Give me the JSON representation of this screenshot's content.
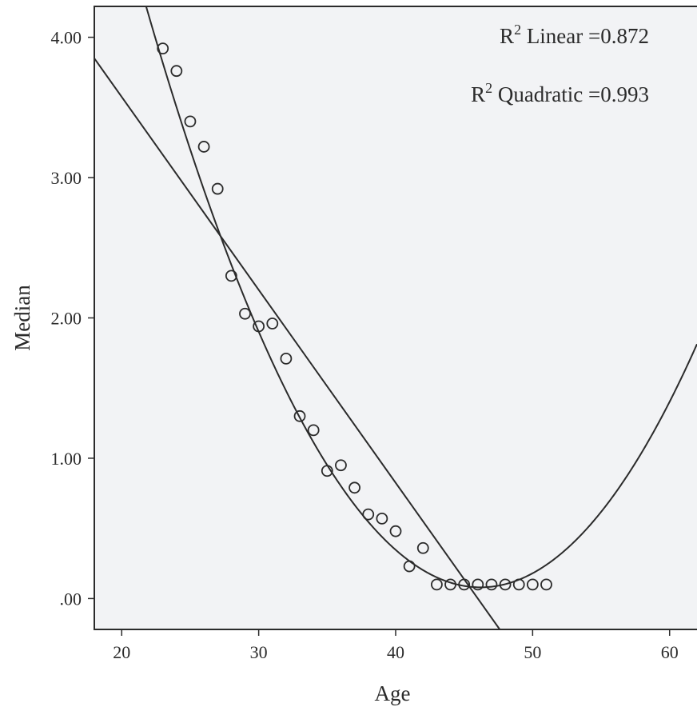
{
  "chart_data": {
    "type": "scatter",
    "xlabel": "Age",
    "ylabel": "Median",
    "xlim": [
      18,
      62
    ],
    "ylim": [
      -0.22,
      4.22
    ],
    "x_ticks": [
      20,
      30,
      40,
      50,
      60
    ],
    "x_tick_labels": [
      "20",
      "30",
      "40",
      "50",
      "60"
    ],
    "y_ticks": [
      0,
      1,
      2,
      3,
      4
    ],
    "y_tick_labels": [
      ".00",
      "1.00",
      "2.00",
      "3.00",
      "4.00"
    ],
    "grid": false,
    "colors": {
      "plot_background": "#f2f3f5",
      "ink": "#2b2b2b"
    },
    "points": [
      {
        "x": 23,
        "y": 3.92
      },
      {
        "x": 24,
        "y": 3.76
      },
      {
        "x": 25,
        "y": 3.4
      },
      {
        "x": 26,
        "y": 3.22
      },
      {
        "x": 27,
        "y": 2.92
      },
      {
        "x": 28,
        "y": 2.3
      },
      {
        "x": 29,
        "y": 2.03
      },
      {
        "x": 30,
        "y": 1.94
      },
      {
        "x": 31,
        "y": 1.96
      },
      {
        "x": 32,
        "y": 1.71
      },
      {
        "x": 33,
        "y": 1.3
      },
      {
        "x": 34,
        "y": 1.2
      },
      {
        "x": 35,
        "y": 0.91
      },
      {
        "x": 36,
        "y": 0.95
      },
      {
        "x": 37,
        "y": 0.79
      },
      {
        "x": 38,
        "y": 0.6
      },
      {
        "x": 39,
        "y": 0.57
      },
      {
        "x": 40,
        "y": 0.48
      },
      {
        "x": 41,
        "y": 0.23
      },
      {
        "x": 42,
        "y": 0.36
      },
      {
        "x": 43,
        "y": 0.1
      },
      {
        "x": 44,
        "y": 0.1
      },
      {
        "x": 45,
        "y": 0.1
      },
      {
        "x": 46,
        "y": 0.1
      },
      {
        "x": 47,
        "y": 0.1
      },
      {
        "x": 48,
        "y": 0.1
      },
      {
        "x": 49,
        "y": 0.1
      },
      {
        "x": 50,
        "y": 0.1
      },
      {
        "x": 51,
        "y": 0.1
      }
    ],
    "fits": [
      {
        "kind": "linear",
        "r2_label": "Linear =0.872",
        "from": {
          "x": 18,
          "y": 3.85
        },
        "to": {
          "x": 47.6,
          "y": -0.22
        }
      },
      {
        "kind": "quadratic",
        "r2_label": "Quadratic =0.993",
        "vertex": {
          "x": 46.2,
          "y": 0.08
        },
        "point": {
          "x": 28,
          "y": 2.38
        }
      }
    ],
    "annotations": [
      {
        "prefix": "R",
        "sup": "2",
        "text": " Linear =0.872",
        "position": "top-right"
      },
      {
        "prefix": "R",
        "sup": "2",
        "text": " Quadratic =0.993",
        "position": "top-right"
      }
    ]
  }
}
